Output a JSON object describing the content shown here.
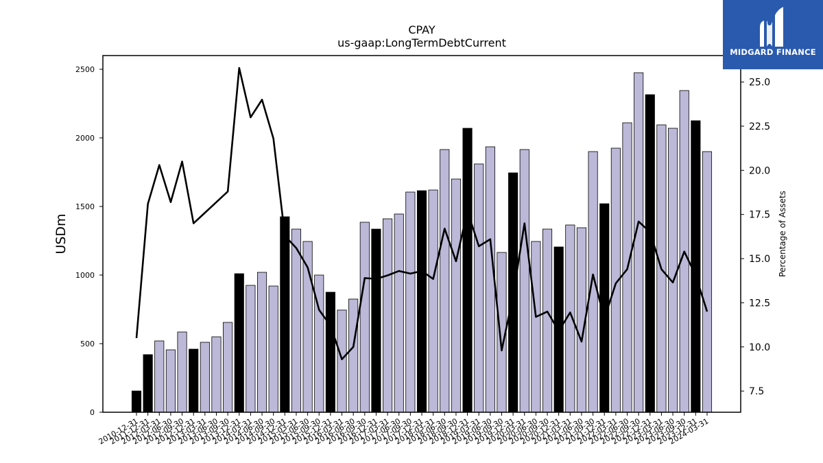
{
  "logo": {
    "text": "MIDGARD FINANCE",
    "background": "#2a5aad"
  },
  "chart_data": {
    "type": "bar",
    "title": "CPAY",
    "subtitle": "us-gaap:LongTermDebtCurrent",
    "ylabel": "USDm",
    "y2label": "Percentage of Assets",
    "ylim": [
      0,
      2600
    ],
    "y2lim": [
      6.3,
      26.5
    ],
    "yticks": [
      0,
      500,
      1000,
      1500,
      2000,
      2500
    ],
    "y2ticks": [
      7.5,
      10.0,
      12.5,
      15.0,
      17.5,
      20.0,
      22.5,
      25.0
    ],
    "grid": false,
    "colors": {
      "annual_bar": "#000000",
      "quarter_bar": "#bbb8d8",
      "line": "#000000"
    },
    "categories": [
      "2010-12-31",
      "2011-12-31",
      "2012-03-31",
      "2012-06-30",
      "2012-09-30",
      "2012-12-31",
      "2013-03-31",
      "2013-06-30",
      "2013-09-30",
      "2013-12-31",
      "2014-03-31",
      "2014-06-30",
      "2014-09-30",
      "2014-12-31",
      "2015-03-31",
      "2015-06-30",
      "2015-09-30",
      "2015-12-31",
      "2016-03-31",
      "2016-06-30",
      "2016-09-30",
      "2016-12-31",
      "2017-03-31",
      "2017-06-30",
      "2017-09-30",
      "2017-12-31",
      "2018-03-31",
      "2018-06-30",
      "2018-09-30",
      "2018-12-31",
      "2019-03-31",
      "2019-06-30",
      "2019-09-30",
      "2019-12-31",
      "2020-03-31",
      "2020-06-30",
      "2020-09-30",
      "2020-12-31",
      "2021-03-31",
      "2021-06-30",
      "2021-09-30",
      "2021-12-31",
      "2022-03-31",
      "2022-06-30",
      "2022-09-30",
      "2022-12-31",
      "2023-03-31",
      "2023-06-30",
      "2023-09-30",
      "2023-12-31",
      "2024-03-31"
    ],
    "series": [
      {
        "name": "",
        "kind": "bar",
        "values": [
          155,
          420,
          520,
          455,
          585,
          460,
          510,
          550,
          655,
          1010,
          925,
          1020,
          920,
          1425,
          1335,
          1245,
          1000,
          875,
          745,
          825,
          1385,
          1335,
          1410,
          1445,
          1605,
          1615,
          1620,
          1915,
          1700,
          2070,
          1810,
          1935,
          1165,
          1745,
          1915,
          1245,
          1335,
          1205,
          1365,
          1345,
          1900,
          1520,
          1925,
          2110,
          2475,
          2315,
          2095,
          2070,
          2345,
          2125,
          1900
        ],
        "annual": [
          true,
          true,
          false,
          false,
          false,
          true,
          false,
          false,
          false,
          true,
          false,
          false,
          false,
          true,
          false,
          false,
          false,
          true,
          false,
          false,
          false,
          true,
          false,
          false,
          false,
          true,
          false,
          false,
          false,
          true,
          false,
          false,
          false,
          true,
          false,
          false,
          false,
          true,
          false,
          false,
          false,
          true,
          false,
          false,
          false,
          true,
          false,
          false,
          false,
          true,
          false
        ]
      },
      {
        "name": "",
        "kind": "line",
        "axis": "right",
        "values": [
          10.5,
          18.1,
          20.3,
          18.2,
          20.5,
          17.0,
          17.6,
          18.2,
          18.8,
          25.8,
          23.0,
          24.0,
          21.8,
          16.3,
          15.6,
          14.5,
          12.1,
          11.2,
          9.3,
          10.0,
          13.9,
          13.85,
          14.05,
          14.3,
          14.15,
          14.3,
          13.85,
          16.7,
          14.85,
          17.7,
          15.7,
          16.1,
          9.8,
          12.9,
          17.0,
          11.7,
          12.0,
          10.9,
          11.95,
          10.3,
          14.1,
          11.6,
          13.6,
          14.4,
          17.1,
          16.5,
          14.4,
          13.65,
          15.4,
          14.05,
          12.0
        ]
      }
    ]
  }
}
